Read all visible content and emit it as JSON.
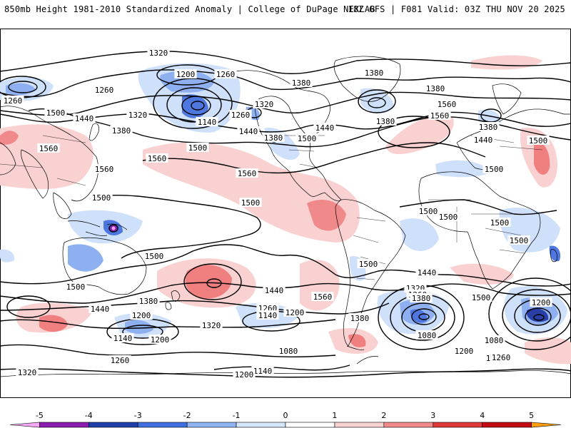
{
  "header": {
    "title": "850mb Height 1981-2010 Standardized Anomaly | College of DuPage NEXLAB",
    "run_info": "18Z GFS | F081 Valid: 03Z THU NOV 20 2025"
  },
  "contour_labels": [
    {
      "id": "c1",
      "text": "1320"
    },
    {
      "id": "c2",
      "text": "1200"
    },
    {
      "id": "c3",
      "text": "1260"
    },
    {
      "id": "c4",
      "text": "1260"
    },
    {
      "id": "c5",
      "text": "1260"
    },
    {
      "id": "c6",
      "text": "1140"
    },
    {
      "id": "c7",
      "text": "1320"
    },
    {
      "id": "c8",
      "text": "1260"
    },
    {
      "id": "c9",
      "text": "1320"
    },
    {
      "id": "c10",
      "text": "1380"
    },
    {
      "id": "c11",
      "text": "1380"
    },
    {
      "id": "c12",
      "text": "1380"
    },
    {
      "id": "c13",
      "text": "1440"
    },
    {
      "id": "c14",
      "text": "1500"
    },
    {
      "id": "c15",
      "text": "1440"
    },
    {
      "id": "c16",
      "text": "1380"
    },
    {
      "id": "c17",
      "text": "1560"
    },
    {
      "id": "c18",
      "text": "1560"
    },
    {
      "id": "c19",
      "text": "1380"
    },
    {
      "id": "c20",
      "text": "1500"
    },
    {
      "id": "c21",
      "text": "1440"
    },
    {
      "id": "c22",
      "text": "1500"
    },
    {
      "id": "c23",
      "text": "1560"
    },
    {
      "id": "c24",
      "text": "1560"
    },
    {
      "id": "c25",
      "text": "1380"
    },
    {
      "id": "c26",
      "text": "1440"
    },
    {
      "id": "c27",
      "text": "1380"
    },
    {
      "id": "c28",
      "text": "1560"
    },
    {
      "id": "c29",
      "text": "1560"
    },
    {
      "id": "c30",
      "text": "1500"
    },
    {
      "id": "c31",
      "text": "1500"
    },
    {
      "id": "c32",
      "text": "1500"
    },
    {
      "id": "c33",
      "text": "1500"
    },
    {
      "id": "c34",
      "text": "1500"
    },
    {
      "id": "c35",
      "text": "1500"
    },
    {
      "id": "c36",
      "text": "1500"
    },
    {
      "id": "c37",
      "text": "1500"
    },
    {
      "id": "c38",
      "text": "1500"
    },
    {
      "id": "c39",
      "text": "1440"
    },
    {
      "id": "c40",
      "text": "1500"
    },
    {
      "id": "c41",
      "text": "1500"
    },
    {
      "id": "c42",
      "text": "1440"
    },
    {
      "id": "c43",
      "text": "1560"
    },
    {
      "id": "c44",
      "text": "1380"
    },
    {
      "id": "c45",
      "text": "1320"
    },
    {
      "id": "c46",
      "text": "1260"
    },
    {
      "id": "c47",
      "text": "1500"
    },
    {
      "id": "c48",
      "text": "1440"
    },
    {
      "id": "c49",
      "text": "1380"
    },
    {
      "id": "c50",
      "text": "1260"
    },
    {
      "id": "c51",
      "text": "1140"
    },
    {
      "id": "c52",
      "text": "1200"
    },
    {
      "id": "c53",
      "text": "1380"
    },
    {
      "id": "c54",
      "text": "1200"
    },
    {
      "id": "c55",
      "text": "1320"
    },
    {
      "id": "c56",
      "text": "1140"
    },
    {
      "id": "c57",
      "text": "1200"
    },
    {
      "id": "c58",
      "text": "1080"
    },
    {
      "id": "c59",
      "text": "1140"
    },
    {
      "id": "c60",
      "text": "1080"
    },
    {
      "id": "c61",
      "text": "1200"
    },
    {
      "id": "c62",
      "text": "1260"
    },
    {
      "id": "c63",
      "text": "1200"
    },
    {
      "id": "c64",
      "text": "1140"
    },
    {
      "id": "c65",
      "text": "1080"
    },
    {
      "id": "c66",
      "text": "1200"
    },
    {
      "id": "c67",
      "text": "1260"
    },
    {
      "id": "c68",
      "text": "1320"
    },
    {
      "id": "c69",
      "text": "1200"
    },
    {
      "id": "c70",
      "text": "1140"
    }
  ],
  "colorbar": {
    "ticks": [
      "-5",
      "-4",
      "-3",
      "-2",
      "-1",
      "0",
      "1",
      "2",
      "3",
      "4",
      "5"
    ],
    "range": [
      -5.6,
      5.6
    ],
    "bins": [
      {
        "from": -5.6,
        "to": -5,
        "color": "#f7a8f7"
      },
      {
        "from": -5,
        "to": -4,
        "color": "#8a1db0"
      },
      {
        "from": -4,
        "to": -3,
        "color": "#1f3ea8"
      },
      {
        "from": -3,
        "to": -2,
        "color": "#3f6fe0"
      },
      {
        "from": -2,
        "to": -1,
        "color": "#8fb4f2"
      },
      {
        "from": -1,
        "to": 0,
        "color": "#d6e6fb"
      },
      {
        "from": 0,
        "to": 1,
        "color": "#ffffff"
      },
      {
        "from": 1,
        "to": 2,
        "color": "#f9d1d1"
      },
      {
        "from": 2,
        "to": 3,
        "color": "#f08a8a"
      },
      {
        "from": 3,
        "to": 4,
        "color": "#e0373a"
      },
      {
        "from": 4,
        "to": 5,
        "color": "#c40a12"
      },
      {
        "from": 5,
        "to": 5.6,
        "color": "#ff9f10"
      }
    ]
  },
  "colors": {
    "pos1": "#f9d1d1",
    "pos2": "#f07f80",
    "neg1": "#cfe0fa",
    "neg2": "#8fb0f0",
    "neg3": "#4e78e0",
    "neg4": "#2a3fa6",
    "line": "#000000"
  }
}
